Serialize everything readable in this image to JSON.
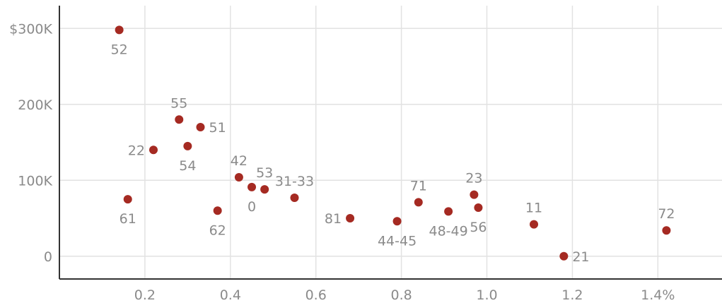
{
  "chart_data": {
    "type": "scatter",
    "title": "",
    "xlabel": "",
    "ylabel": "",
    "xlim": [
      0,
      1.55
    ],
    "ylim": [
      -30000,
      330000
    ],
    "grid": true,
    "x_ticks": [
      {
        "value": 0.2,
        "label": "0.2"
      },
      {
        "value": 0.4,
        "label": "0.4"
      },
      {
        "value": 0.6,
        "label": "0.6"
      },
      {
        "value": 0.8,
        "label": "0.8"
      },
      {
        "value": 1.0,
        "label": "1.0"
      },
      {
        "value": 1.2,
        "label": "1.2"
      },
      {
        "value": 1.4,
        "label": "1.4%"
      }
    ],
    "y_ticks": [
      {
        "value": 0,
        "label": "0"
      },
      {
        "value": 100000,
        "label": "100K"
      },
      {
        "value": 200000,
        "label": "200K"
      },
      {
        "value": 300000,
        "label": "$300K"
      }
    ],
    "point_color": "#a52a22",
    "points": [
      {
        "label": "52",
        "x": 0.14,
        "y": 298000,
        "label_pos": "below"
      },
      {
        "label": "55",
        "x": 0.28,
        "y": 180000,
        "label_pos": "above"
      },
      {
        "label": "51",
        "x": 0.33,
        "y": 170000,
        "label_pos": "right"
      },
      {
        "label": "22",
        "x": 0.22,
        "y": 140000,
        "label_pos": "left"
      },
      {
        "label": "54",
        "x": 0.3,
        "y": 145000,
        "label_pos": "below"
      },
      {
        "label": "61",
        "x": 0.16,
        "y": 75000,
        "label_pos": "below"
      },
      {
        "label": "62",
        "x": 0.37,
        "y": 60000,
        "label_pos": "below"
      },
      {
        "label": "42",
        "x": 0.42,
        "y": 104000,
        "label_pos": "above"
      },
      {
        "label": "0",
        "x": 0.45,
        "y": 91000,
        "label_pos": "below"
      },
      {
        "label": "53",
        "x": 0.48,
        "y": 88000,
        "label_pos": "above"
      },
      {
        "label": "31-33",
        "x": 0.55,
        "y": 77000,
        "label_pos": "above"
      },
      {
        "label": "81",
        "x": 0.68,
        "y": 50000,
        "label_pos": "left"
      },
      {
        "label": "44-45",
        "x": 0.79,
        "y": 46000,
        "label_pos": "below"
      },
      {
        "label": "71",
        "x": 0.84,
        "y": 71000,
        "label_pos": "above"
      },
      {
        "label": "48-49",
        "x": 0.91,
        "y": 59000,
        "label_pos": "below"
      },
      {
        "label": "23",
        "x": 0.97,
        "y": 81000,
        "label_pos": "above"
      },
      {
        "label": "56",
        "x": 0.98,
        "y": 64000,
        "label_pos": "below"
      },
      {
        "label": "11",
        "x": 1.11,
        "y": 42000,
        "label_pos": "above"
      },
      {
        "label": "21",
        "x": 1.18,
        "y": 0,
        "label_pos": "right"
      },
      {
        "label": "72",
        "x": 1.42,
        "y": 34000,
        "label_pos": "above"
      }
    ]
  }
}
